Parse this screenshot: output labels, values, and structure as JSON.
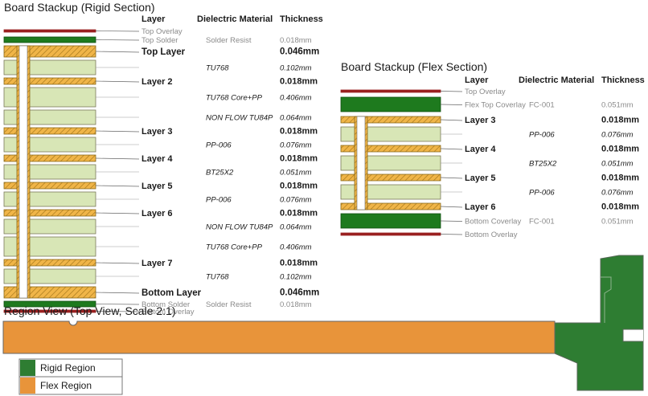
{
  "rigid": {
    "title": "Board Stackup (Rigid Section)",
    "headers": {
      "layer": "Layer",
      "material": "Dielectric Material",
      "thickness": "Thickness"
    },
    "rows": [
      {
        "type": "overlay",
        "label": "Top Overlay"
      },
      {
        "type": "mask",
        "label": "Top Solder",
        "material": "Solder Resist",
        "thickness": "0.018mm"
      },
      {
        "type": "copper",
        "label": "Top Layer",
        "thickness": "0.046mm"
      },
      {
        "type": "diel",
        "material": "TU768",
        "thickness": "0.102mm"
      },
      {
        "type": "copper",
        "label": "Layer 2",
        "thickness": "0.018mm"
      },
      {
        "type": "diel",
        "material": "TU768 Core+PP",
        "thickness": "0.406mm"
      },
      {
        "type": "diel",
        "material": "NON FLOW TU84P",
        "thickness": "0.064mm"
      },
      {
        "type": "copper",
        "label": "Layer 3",
        "thickness": "0.018mm"
      },
      {
        "type": "diel",
        "material": "PP-006",
        "thickness": "0.076mm"
      },
      {
        "type": "copper",
        "label": "Layer 4",
        "thickness": "0.018mm"
      },
      {
        "type": "diel",
        "material": "BT25X2",
        "thickness": "0.051mm"
      },
      {
        "type": "copper",
        "label": "Layer 5",
        "thickness": "0.018mm"
      },
      {
        "type": "diel",
        "material": "PP-006",
        "thickness": "0.076mm"
      },
      {
        "type": "copper",
        "label": "Layer 6",
        "thickness": "0.018mm"
      },
      {
        "type": "diel",
        "material": "NON FLOW TU84P",
        "thickness": "0.064mm"
      },
      {
        "type": "diel",
        "material": "TU768 Core+PP",
        "thickness": "0.406mm"
      },
      {
        "type": "copper",
        "label": "Layer 7",
        "thickness": "0.018mm"
      },
      {
        "type": "diel",
        "material": "TU768",
        "thickness": "0.102mm"
      },
      {
        "type": "copper",
        "label": "Bottom Layer",
        "thickness": "0.046mm"
      },
      {
        "type": "mask",
        "label": "Bottom Solder",
        "material": "Solder Resist",
        "thickness": "0.018mm"
      },
      {
        "type": "overlay",
        "label": "Bottom Overlay"
      }
    ]
  },
  "flex": {
    "title": "Board Stackup (Flex Section)",
    "headers": {
      "layer": "Layer",
      "material": "Dielectric Material",
      "thickness": "Thickness"
    },
    "rows": [
      {
        "type": "overlay",
        "label": "Top Overlay"
      },
      {
        "type": "coverlay",
        "label": "Flex Top Coverlay",
        "material": "FC-001",
        "thickness": "0.051mm"
      },
      {
        "type": "copper",
        "label": "Layer 3",
        "thickness": "0.018mm"
      },
      {
        "type": "diel",
        "material": "PP-006",
        "thickness": "0.076mm"
      },
      {
        "type": "copper",
        "label": "Layer 4",
        "thickness": "0.018mm"
      },
      {
        "type": "diel",
        "material": "BT25X2",
        "thickness": "0.051mm"
      },
      {
        "type": "copper",
        "label": "Layer 5",
        "thickness": "0.018mm"
      },
      {
        "type": "diel",
        "material": "PP-006",
        "thickness": "0.076mm"
      },
      {
        "type": "copper",
        "label": "Layer 6",
        "thickness": "0.018mm"
      },
      {
        "type": "coverlay",
        "label": "Bottom Coverlay",
        "material": "FC-001",
        "thickness": "0.051mm"
      },
      {
        "type": "overlay",
        "label": "Bottom Overlay"
      }
    ]
  },
  "region": {
    "title": "Region View (Top View, Scale 2:1)",
    "legend": [
      {
        "label": "Rigid Region",
        "color": "#2e7d32"
      },
      {
        "label": "Flex Region",
        "color": "#e8943a"
      }
    ]
  },
  "colors": {
    "copper": "#f0b548",
    "copper_hatch": "#a87a1c",
    "dielectric": "#d8e6b6",
    "mask": "#1e7a1e",
    "overlay": "#9a2020",
    "rigid": "#2e7d32",
    "flex": "#e8943a"
  }
}
